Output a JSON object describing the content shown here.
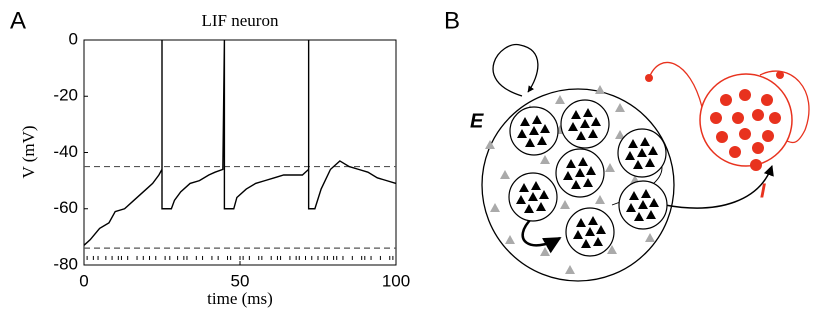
{
  "chart_data": {
    "type": "line",
    "panel_label": "A",
    "title": "LIF neuron",
    "xlabel": "time (ms)",
    "ylabel": "V (mV)",
    "x": [
      0,
      2,
      5,
      8,
      10,
      13,
      16,
      18,
      20,
      22,
      24,
      25,
      25,
      25,
      28,
      29,
      31,
      34,
      37,
      40,
      42,
      44.5,
      45,
      45,
      48,
      49,
      52,
      55,
      58,
      61,
      64,
      67,
      70,
      72,
      72,
      72,
      74,
      76,
      79,
      82,
      85,
      88,
      91,
      94,
      97,
      100
    ],
    "values": [
      -73,
      -71,
      -67,
      -65,
      -61,
      -60,
      -57,
      -55,
      -53,
      -51,
      -48,
      -46,
      0,
      -60,
      -60,
      -57,
      -54,
      -51,
      -50,
      -48,
      -47,
      -46,
      0,
      -60,
      -60,
      -56,
      -53,
      -51,
      -50,
      -49,
      -48,
      -48,
      -48,
      -46,
      0,
      -60,
      -60,
      -53,
      -46,
      -43,
      -45,
      -46,
      -47,
      -49,
      -50,
      -51
    ],
    "color": "#000000",
    "hlines": [
      -45,
      -74
    ],
    "raster": {
      "y": -77.5,
      "x": [
        1,
        3,
        4.5,
        7,
        9,
        11,
        12,
        14,
        17,
        19,
        21,
        23,
        26,
        27.5,
        30,
        32,
        33,
        36,
        38,
        41,
        43,
        46,
        47,
        50,
        51,
        53,
        56,
        57,
        60,
        62,
        63,
        66,
        68,
        69,
        71,
        73,
        75,
        77,
        78,
        80,
        81,
        83,
        86,
        89,
        90,
        92,
        95,
        98,
        99
      ]
    },
    "xlim": [
      0,
      100
    ],
    "ylim": [
      -80,
      0
    ],
    "xticks": [
      0,
      50,
      100
    ],
    "yticks": [
      0,
      -20,
      -40,
      -60,
      -80
    ]
  },
  "diagram": {
    "panel_label": "B",
    "excitatory_label": "E",
    "inhibitory_label": "I"
  }
}
